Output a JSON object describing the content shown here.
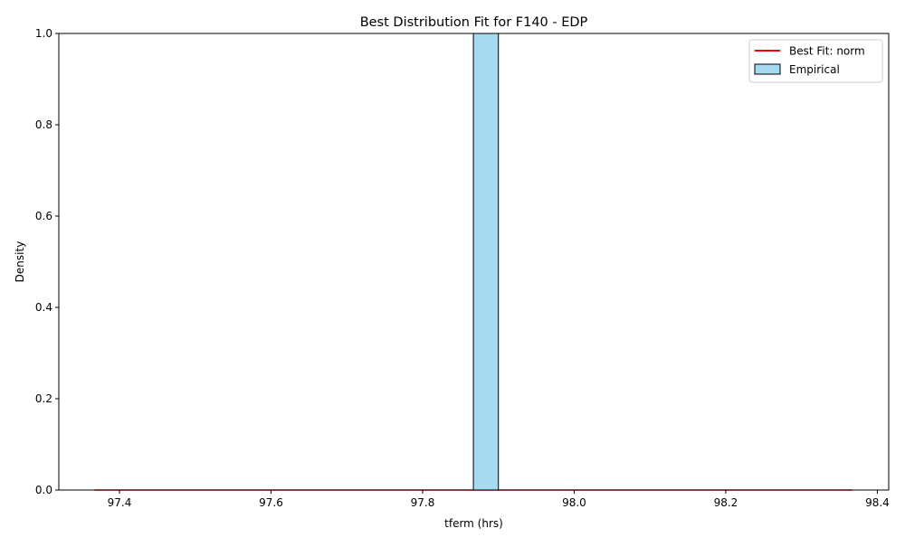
{
  "chart_data": {
    "type": "bar",
    "title": "Best Distribution Fit for F140 - EDP",
    "xlabel": "tferm (hrs)",
    "ylabel": "Density",
    "xlim": [
      97.32,
      98.415
    ],
    "ylim": [
      0,
      1.0
    ],
    "xticks": [
      97.4,
      97.6,
      97.8,
      98.0,
      98.2,
      98.4
    ],
    "xtick_labels": [
      "97.4",
      "97.6",
      "97.8",
      "98.0",
      "98.2",
      "98.4"
    ],
    "yticks": [
      0,
      0.2,
      0.4,
      0.6,
      0.8,
      1.0
    ],
    "ytick_labels": [
      "0.0",
      "0.2",
      "0.4",
      "0.6",
      "0.8",
      "1.0"
    ],
    "grid": false,
    "legend_position": "top-right",
    "series": [
      {
        "name": "Empirical",
        "kind": "histogram",
        "color": "#87CEEB",
        "edge_color": "#000000",
        "bins": [
          {
            "x0": 97.867,
            "x1": 97.9,
            "density": 1.0
          }
        ]
      },
      {
        "name": "Best Fit: norm",
        "kind": "line",
        "color": "#ff0000",
        "x": [
          97.367,
          98.367
        ],
        "y": [
          0,
          0
        ]
      }
    ],
    "baseline_line": {
      "color": "#000000",
      "x": [
        97.367,
        98.367
      ],
      "y": [
        0,
        0
      ]
    }
  }
}
